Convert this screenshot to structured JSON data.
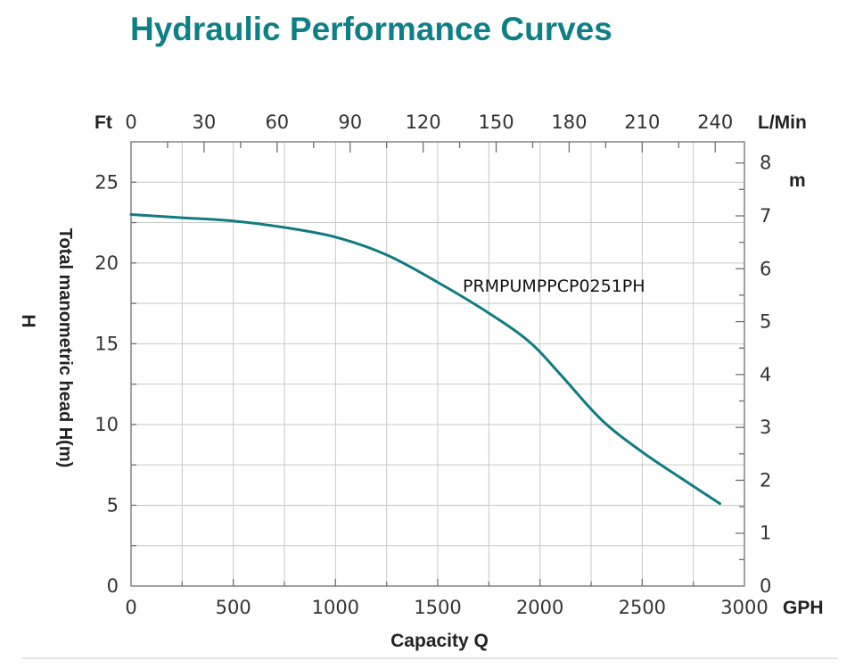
{
  "chart_data": {
    "type": "line",
    "title": "Hydraulic Performance Curves",
    "xlabel": "Capacity Q",
    "ylabel": "Total manometric head H(m)",
    "left_letter": "H",
    "x_unit": "GPH",
    "x_top_unit": "L/Min",
    "y_left_unit": "Ft",
    "y_right_unit": "m",
    "xlim": [
      0,
      3000
    ],
    "ylim": [
      0,
      27.5
    ],
    "x_ticks": [
      0,
      500,
      1000,
      1500,
      2000,
      2500,
      3000
    ],
    "x_top_ticks": [
      0,
      30,
      60,
      90,
      120,
      150,
      180,
      210,
      240
    ],
    "x_top_lim": [
      0,
      252
    ],
    "y_left_ticks": [
      0,
      5,
      10,
      15,
      20,
      25
    ],
    "y_right_ticks": [
      0,
      1,
      2,
      3,
      4,
      5,
      6,
      7,
      8
    ],
    "y_right_lim": [
      0,
      8.4
    ],
    "grid": true,
    "colors": {
      "curve": "#117b80",
      "title": "#0f7f86"
    },
    "series": [
      {
        "name": "PRMPUMPPCP0251PH",
        "x": [
          0,
          250,
          500,
          750,
          1000,
          1250,
          1500,
          1750,
          1950,
          2100,
          2300,
          2500,
          2700,
          2880
        ],
        "y": [
          23.0,
          22.8,
          22.6,
          22.2,
          21.6,
          20.5,
          18.8,
          16.9,
          15.1,
          13.1,
          10.3,
          8.3,
          6.6,
          5.1
        ]
      }
    ]
  }
}
